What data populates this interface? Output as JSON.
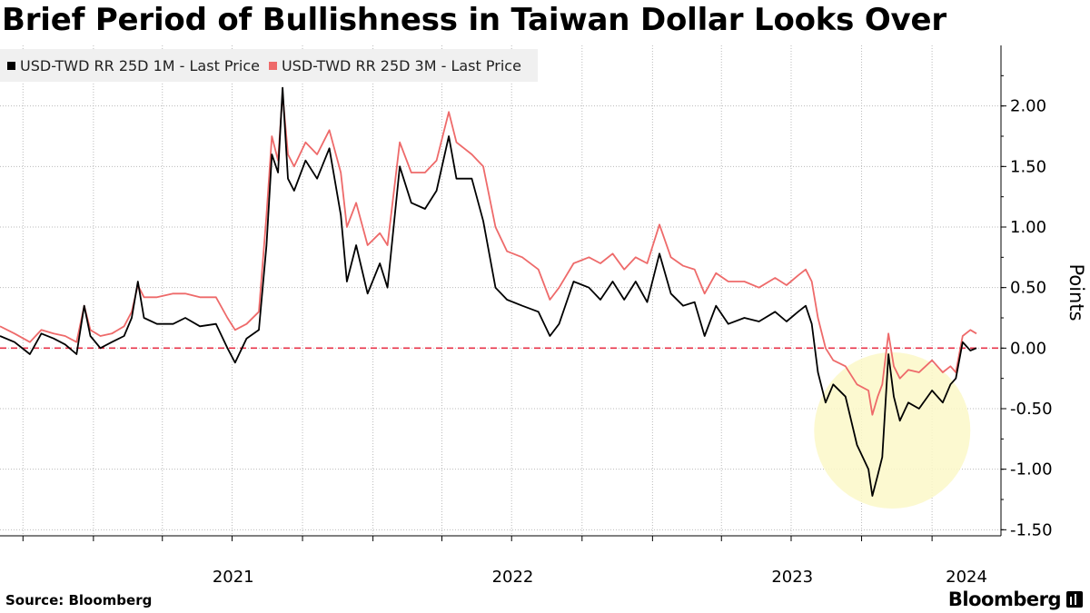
{
  "header": {
    "title": "Brief Period of Bullishness in Taiwan Dollar Looks Over"
  },
  "footer": {
    "source": "Source:  Bloomberg",
    "brand": "Bloomberg"
  },
  "colors": {
    "series_1m": "#000000",
    "series_3m": "#ee6a6a",
    "zero_line": "#e8334a",
    "highlight": "#fbf8c8",
    "grid": "#bbbbbb"
  },
  "chart_data": {
    "type": "line",
    "title": "Brief Period of Bullishness in Taiwan Dollar Looks Over",
    "ylabel": "Points",
    "ylim": [
      -1.55,
      2.5
    ],
    "y_ticks": [
      "2.00",
      "1.50",
      "1.00",
      "0.50",
      "0.00",
      "-0.50",
      "-1.00",
      "-1.50"
    ],
    "y_tick_values": [
      2.0,
      1.5,
      1.0,
      0.5,
      0.0,
      -0.5,
      -1.0,
      -1.5
    ],
    "xlim": [
      "2020-09-01",
      "2024-03-31"
    ],
    "x_ticks": [
      "2021",
      "2022",
      "2023",
      "2024"
    ],
    "x_tick_dates": [
      "2021-01-01",
      "2022-01-01",
      "2023-01-01",
      "2024-01-01"
    ],
    "grid": true,
    "legend_position": "top-left",
    "reference_line": {
      "y": 0,
      "style": "dashed"
    },
    "highlight_circle": {
      "center": [
        "2023-11-10",
        -0.68
      ],
      "note": "recent dip"
    },
    "series": [
      {
        "name": "USD-TWD RR 25D 1M - Last Price",
        "color": "#000000",
        "points": [
          [
            "2020-09-01",
            0.1
          ],
          [
            "2020-09-20",
            0.05
          ],
          [
            "2020-10-10",
            -0.05
          ],
          [
            "2020-10-25",
            0.12
          ],
          [
            "2020-11-10",
            0.08
          ],
          [
            "2020-11-25",
            0.03
          ],
          [
            "2020-12-10",
            -0.05
          ],
          [
            "2020-12-20",
            0.35
          ],
          [
            "2020-12-28",
            0.1
          ],
          [
            "2021-01-10",
            0.0
          ],
          [
            "2021-01-25",
            0.05
          ],
          [
            "2021-02-10",
            0.1
          ],
          [
            "2021-02-20",
            0.25
          ],
          [
            "2021-02-28",
            0.55
          ],
          [
            "2021-03-08",
            0.25
          ],
          [
            "2021-03-25",
            0.2
          ],
          [
            "2021-04-15",
            0.2
          ],
          [
            "2021-05-01",
            0.25
          ],
          [
            "2021-05-20",
            0.18
          ],
          [
            "2021-06-10",
            0.2
          ],
          [
            "2021-06-25",
            0.0
          ],
          [
            "2021-07-05",
            -0.12
          ],
          [
            "2021-07-20",
            0.08
          ],
          [
            "2021-08-05",
            0.15
          ],
          [
            "2021-08-15",
            0.85
          ],
          [
            "2021-08-22",
            1.6
          ],
          [
            "2021-08-30",
            1.45
          ],
          [
            "2021-09-05",
            2.15
          ],
          [
            "2021-09-12",
            1.4
          ],
          [
            "2021-09-20",
            1.3
          ],
          [
            "2021-10-05",
            1.55
          ],
          [
            "2021-10-20",
            1.4
          ],
          [
            "2021-11-05",
            1.65
          ],
          [
            "2021-11-20",
            1.1
          ],
          [
            "2021-11-28",
            0.55
          ],
          [
            "2021-12-10",
            0.85
          ],
          [
            "2021-12-25",
            0.45
          ],
          [
            "2022-01-10",
            0.7
          ],
          [
            "2022-01-20",
            0.5
          ],
          [
            "2022-02-05",
            1.5
          ],
          [
            "2022-02-20",
            1.2
          ],
          [
            "2022-03-10",
            1.15
          ],
          [
            "2022-03-25",
            1.3
          ],
          [
            "2022-04-10",
            1.75
          ],
          [
            "2022-04-20",
            1.4
          ],
          [
            "2022-05-10",
            1.4
          ],
          [
            "2022-05-25",
            1.05
          ],
          [
            "2022-06-10",
            0.5
          ],
          [
            "2022-06-25",
            0.4
          ],
          [
            "2022-07-15",
            0.35
          ],
          [
            "2022-08-05",
            0.3
          ],
          [
            "2022-08-20",
            0.1
          ],
          [
            "2022-09-01",
            0.2
          ],
          [
            "2022-09-20",
            0.55
          ],
          [
            "2022-10-10",
            0.5
          ],
          [
            "2022-10-25",
            0.4
          ],
          [
            "2022-11-10",
            0.55
          ],
          [
            "2022-11-25",
            0.4
          ],
          [
            "2022-12-10",
            0.55
          ],
          [
            "2022-12-25",
            0.38
          ],
          [
            "2023-01-10",
            0.78
          ],
          [
            "2023-01-25",
            0.45
          ],
          [
            "2023-02-10",
            0.35
          ],
          [
            "2023-02-25",
            0.38
          ],
          [
            "2023-03-10",
            0.1
          ],
          [
            "2023-03-25",
            0.35
          ],
          [
            "2023-04-10",
            0.2
          ],
          [
            "2023-05-01",
            0.25
          ],
          [
            "2023-05-20",
            0.22
          ],
          [
            "2023-06-10",
            0.3
          ],
          [
            "2023-06-25",
            0.22
          ],
          [
            "2023-07-10",
            0.3
          ],
          [
            "2023-07-20",
            0.35
          ],
          [
            "2023-07-28",
            0.2
          ],
          [
            "2023-08-05",
            -0.2
          ],
          [
            "2023-08-15",
            -0.45
          ],
          [
            "2023-08-25",
            -0.3
          ],
          [
            "2023-09-10",
            -0.4
          ],
          [
            "2023-09-25",
            -0.8
          ],
          [
            "2023-10-10",
            -1.0
          ],
          [
            "2023-10-15",
            -1.22
          ],
          [
            "2023-10-22",
            -1.05
          ],
          [
            "2023-10-28",
            -0.9
          ],
          [
            "2023-11-05",
            -0.05
          ],
          [
            "2023-11-12",
            -0.4
          ],
          [
            "2023-11-20",
            -0.6
          ],
          [
            "2023-12-01",
            -0.45
          ],
          [
            "2023-12-15",
            -0.5
          ],
          [
            "2024-01-01",
            -0.35
          ],
          [
            "2024-01-15",
            -0.45
          ],
          [
            "2024-01-25",
            -0.3
          ],
          [
            "2024-02-01",
            -0.25
          ],
          [
            "2024-02-10",
            0.05
          ],
          [
            "2024-02-20",
            -0.02
          ],
          [
            "2024-02-28",
            0.0
          ]
        ]
      },
      {
        "name": "USD-TWD RR 25D 3M - Last Price",
        "color": "#ee6a6a",
        "points": [
          [
            "2020-09-01",
            0.18
          ],
          [
            "2020-09-20",
            0.12
          ],
          [
            "2020-10-10",
            0.05
          ],
          [
            "2020-10-25",
            0.15
          ],
          [
            "2020-11-10",
            0.12
          ],
          [
            "2020-11-25",
            0.1
          ],
          [
            "2020-12-10",
            0.05
          ],
          [
            "2020-12-20",
            0.35
          ],
          [
            "2020-12-28",
            0.15
          ],
          [
            "2021-01-10",
            0.1
          ],
          [
            "2021-01-25",
            0.12
          ],
          [
            "2021-02-10",
            0.18
          ],
          [
            "2021-02-20",
            0.3
          ],
          [
            "2021-02-28",
            0.52
          ],
          [
            "2021-03-08",
            0.42
          ],
          [
            "2021-03-25",
            0.42
          ],
          [
            "2021-04-15",
            0.45
          ],
          [
            "2021-05-01",
            0.45
          ],
          [
            "2021-05-20",
            0.42
          ],
          [
            "2021-06-10",
            0.42
          ],
          [
            "2021-06-25",
            0.25
          ],
          [
            "2021-07-05",
            0.15
          ],
          [
            "2021-07-20",
            0.2
          ],
          [
            "2021-08-05",
            0.3
          ],
          [
            "2021-08-15",
            1.1
          ],
          [
            "2021-08-22",
            1.75
          ],
          [
            "2021-08-30",
            1.55
          ],
          [
            "2021-09-05",
            2.1
          ],
          [
            "2021-09-12",
            1.6
          ],
          [
            "2021-09-20",
            1.5
          ],
          [
            "2021-10-05",
            1.7
          ],
          [
            "2021-10-20",
            1.6
          ],
          [
            "2021-11-05",
            1.8
          ],
          [
            "2021-11-20",
            1.45
          ],
          [
            "2021-11-28",
            1.0
          ],
          [
            "2021-12-10",
            1.2
          ],
          [
            "2021-12-25",
            0.85
          ],
          [
            "2022-01-10",
            0.95
          ],
          [
            "2022-01-20",
            0.85
          ],
          [
            "2022-02-05",
            1.7
          ],
          [
            "2022-02-20",
            1.45
          ],
          [
            "2022-03-10",
            1.45
          ],
          [
            "2022-03-25",
            1.55
          ],
          [
            "2022-04-10",
            1.95
          ],
          [
            "2022-04-20",
            1.7
          ],
          [
            "2022-05-10",
            1.6
          ],
          [
            "2022-05-25",
            1.5
          ],
          [
            "2022-06-10",
            1.0
          ],
          [
            "2022-06-25",
            0.8
          ],
          [
            "2022-07-15",
            0.75
          ],
          [
            "2022-08-05",
            0.65
          ],
          [
            "2022-08-20",
            0.4
          ],
          [
            "2022-09-01",
            0.5
          ],
          [
            "2022-09-20",
            0.7
          ],
          [
            "2022-10-10",
            0.75
          ],
          [
            "2022-10-25",
            0.7
          ],
          [
            "2022-11-10",
            0.78
          ],
          [
            "2022-11-25",
            0.65
          ],
          [
            "2022-12-10",
            0.75
          ],
          [
            "2022-12-25",
            0.7
          ],
          [
            "2023-01-10",
            1.02
          ],
          [
            "2023-01-25",
            0.75
          ],
          [
            "2023-02-10",
            0.68
          ],
          [
            "2023-02-25",
            0.65
          ],
          [
            "2023-03-10",
            0.45
          ],
          [
            "2023-03-25",
            0.62
          ],
          [
            "2023-04-10",
            0.55
          ],
          [
            "2023-05-01",
            0.55
          ],
          [
            "2023-05-20",
            0.5
          ],
          [
            "2023-06-10",
            0.58
          ],
          [
            "2023-06-25",
            0.52
          ],
          [
            "2023-07-10",
            0.6
          ],
          [
            "2023-07-20",
            0.65
          ],
          [
            "2023-07-28",
            0.55
          ],
          [
            "2023-08-05",
            0.25
          ],
          [
            "2023-08-15",
            0.0
          ],
          [
            "2023-08-25",
            -0.1
          ],
          [
            "2023-09-10",
            -0.15
          ],
          [
            "2023-09-25",
            -0.3
          ],
          [
            "2023-10-10",
            -0.35
          ],
          [
            "2023-10-15",
            -0.55
          ],
          [
            "2023-10-22",
            -0.4
          ],
          [
            "2023-10-28",
            -0.3
          ],
          [
            "2023-11-05",
            0.12
          ],
          [
            "2023-11-12",
            -0.15
          ],
          [
            "2023-11-20",
            -0.25
          ],
          [
            "2023-12-01",
            -0.18
          ],
          [
            "2023-12-15",
            -0.2
          ],
          [
            "2024-01-01",
            -0.1
          ],
          [
            "2024-01-15",
            -0.2
          ],
          [
            "2024-01-25",
            -0.15
          ],
          [
            "2024-02-01",
            -0.2
          ],
          [
            "2024-02-10",
            0.1
          ],
          [
            "2024-02-20",
            0.15
          ],
          [
            "2024-02-28",
            0.12
          ]
        ]
      }
    ]
  }
}
